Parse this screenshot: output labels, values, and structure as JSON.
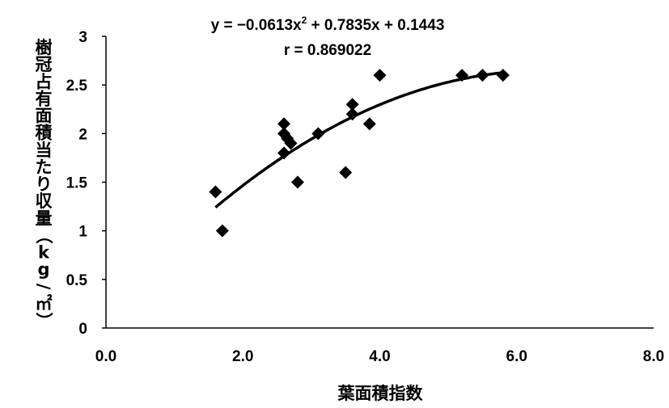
{
  "chart_data": {
    "type": "scatter",
    "xlabel": "葉面積指数",
    "ylabel": "樹冠占有面積当たり収量（kg/㎡）",
    "xlim": [
      0,
      8
    ],
    "ylim": [
      0,
      3
    ],
    "x_ticks": [
      "0.0",
      "2.0",
      "4.0",
      "6.0",
      "8.0"
    ],
    "y_ticks": [
      "0",
      "0.5",
      "1",
      "1.5",
      "2",
      "2.5",
      "3"
    ],
    "grid": false,
    "legend": "none",
    "points": [
      [
        1.6,
        1.4
      ],
      [
        1.7,
        1.0
      ],
      [
        2.6,
        2.1
      ],
      [
        2.6,
        2.0
      ],
      [
        2.6,
        1.8
      ],
      [
        2.65,
        1.95
      ],
      [
        2.7,
        1.9
      ],
      [
        2.8,
        1.5
      ],
      [
        3.1,
        2.0
      ],
      [
        3.5,
        1.6
      ],
      [
        3.6,
        2.3
      ],
      [
        3.6,
        2.2
      ],
      [
        3.85,
        2.1
      ],
      [
        4.0,
        2.6
      ],
      [
        5.2,
        2.6
      ],
      [
        5.5,
        2.6
      ],
      [
        5.8,
        2.6
      ]
    ],
    "trendline": {
      "type": "polynomial",
      "coefficients": [
        -0.0613,
        0.7835,
        0.1443
      ],
      "x_range": [
        1.6,
        5.8
      ],
      "equation_text": "y = −0.0613x",
      "equation_superscript": "2",
      "equation_rest": " + 0.7835x + 0.1443",
      "r_text": "r = 0.869022"
    }
  }
}
